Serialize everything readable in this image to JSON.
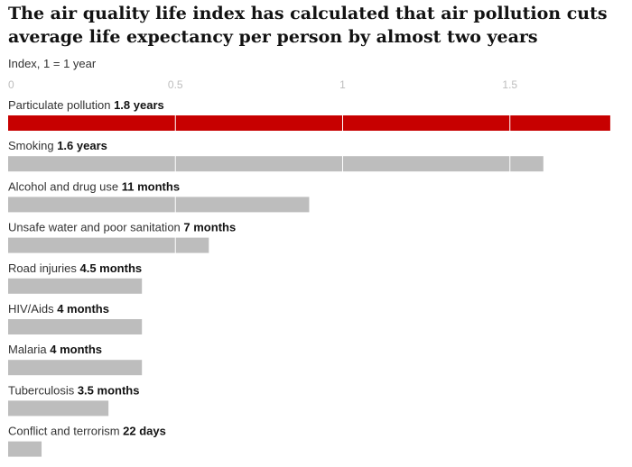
{
  "chart_data": {
    "type": "bar",
    "orientation": "horizontal",
    "title": "The air quality life index has calculated that air pollution cuts average life expectancy per person by almost two years",
    "subtitle": "Index, 1 = 1 year",
    "xlim": [
      0,
      1.8
    ],
    "ticks": [
      {
        "value": 0,
        "label": "0"
      },
      {
        "value": 0.5,
        "label": "0.5"
      },
      {
        "value": 1,
        "label": "1"
      },
      {
        "value": 1.5,
        "label": "1.5"
      }
    ],
    "grid": true,
    "categories": [
      {
        "name": "Particulate pollution",
        "value_label": "1.8 years",
        "value": 1.8,
        "highlight": true
      },
      {
        "name": "Smoking",
        "value_label": "1.6 years",
        "value": 1.6
      },
      {
        "name": "Alcohol and drug use",
        "value_label": "11 months",
        "value": 0.9
      },
      {
        "name": "Unsafe water and poor sanitation",
        "value_label": "7 months",
        "value": 0.6
      },
      {
        "name": "Road injuries",
        "value_label": "4.5 months",
        "value": 0.4
      },
      {
        "name": "HIV/Aids",
        "value_label": "4 months",
        "value": 0.4
      },
      {
        "name": "Malaria",
        "value_label": "4 months",
        "value": 0.4
      },
      {
        "name": "Tuberculosis",
        "value_label": "3.5 months",
        "value": 0.3
      },
      {
        "name": "Conflict and terrorism",
        "value_label": "22 days",
        "value": 0.1
      }
    ],
    "colors": {
      "highlight": "#c70000",
      "default": "#bdbdbd",
      "grid": "#ffffff"
    }
  }
}
